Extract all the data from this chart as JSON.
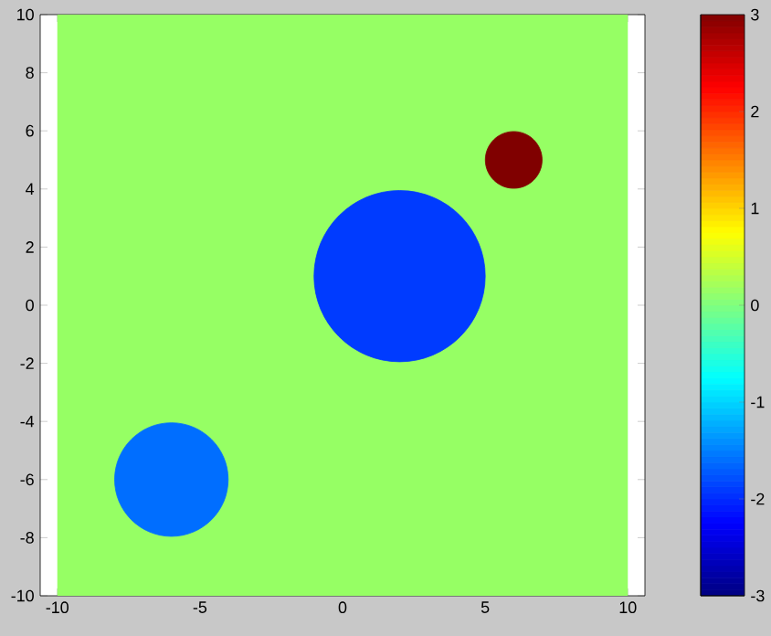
{
  "chart_data": {
    "type": "bubble",
    "x": [
      -6,
      2,
      6
    ],
    "values": [
      -6,
      1,
      5
    ],
    "sizes": [
      0.44,
      1,
      0.11
    ],
    "cvalues": [
      -1.6,
      -1.9,
      3
    ],
    "clim": [
      -3,
      3
    ],
    "cticks": [
      -3,
      -2,
      -1,
      0,
      1,
      2,
      3
    ],
    "xlim": [
      -10.6,
      10.6
    ],
    "ylim": [
      -10,
      10
    ],
    "xticks": [
      -10,
      -5,
      0,
      5,
      10
    ],
    "yticks": [
      -10,
      -8,
      -6,
      -4,
      -2,
      0,
      2,
      4,
      6,
      8,
      10
    ],
    "bands": [
      {
        "axis": "x",
        "from": -10,
        "to": 10,
        "color": "#96ff64"
      }
    ]
  }
}
